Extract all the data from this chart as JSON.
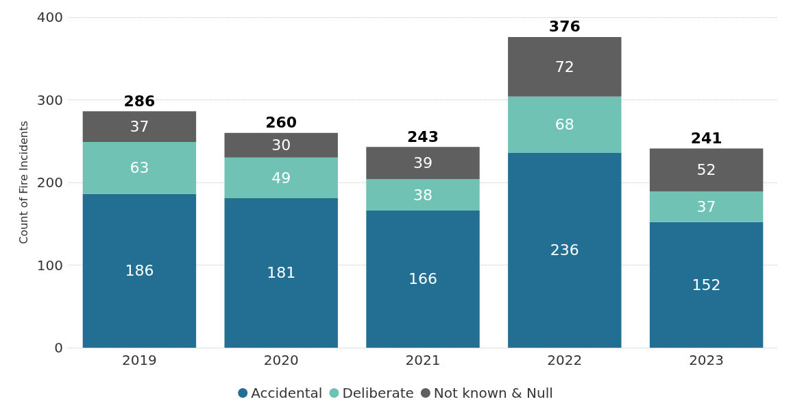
{
  "chart_data": {
    "type": "bar",
    "stacked": true,
    "ylabel": "Count of Fire Incidents",
    "categories": [
      "2019",
      "2020",
      "2021",
      "2022",
      "2023"
    ],
    "series": [
      {
        "name": "Accidental",
        "color": "#236f94",
        "values": [
          186,
          181,
          166,
          236,
          152
        ]
      },
      {
        "name": "Deliberate",
        "color": "#6fc2b4",
        "values": [
          63,
          49,
          38,
          68,
          37
        ]
      },
      {
        "name": "Not known & Null",
        "color": "#5f5f5f",
        "values": [
          37,
          30,
          39,
          72,
          52
        ]
      }
    ],
    "totals": [
      "286",
      "260",
      "243",
      "376",
      "241"
    ],
    "ylim": [
      0,
      400
    ],
    "yticks": [
      0,
      100,
      200,
      300,
      400
    ],
    "grid": "y",
    "legend": "bottom",
    "data_labels": true
  }
}
